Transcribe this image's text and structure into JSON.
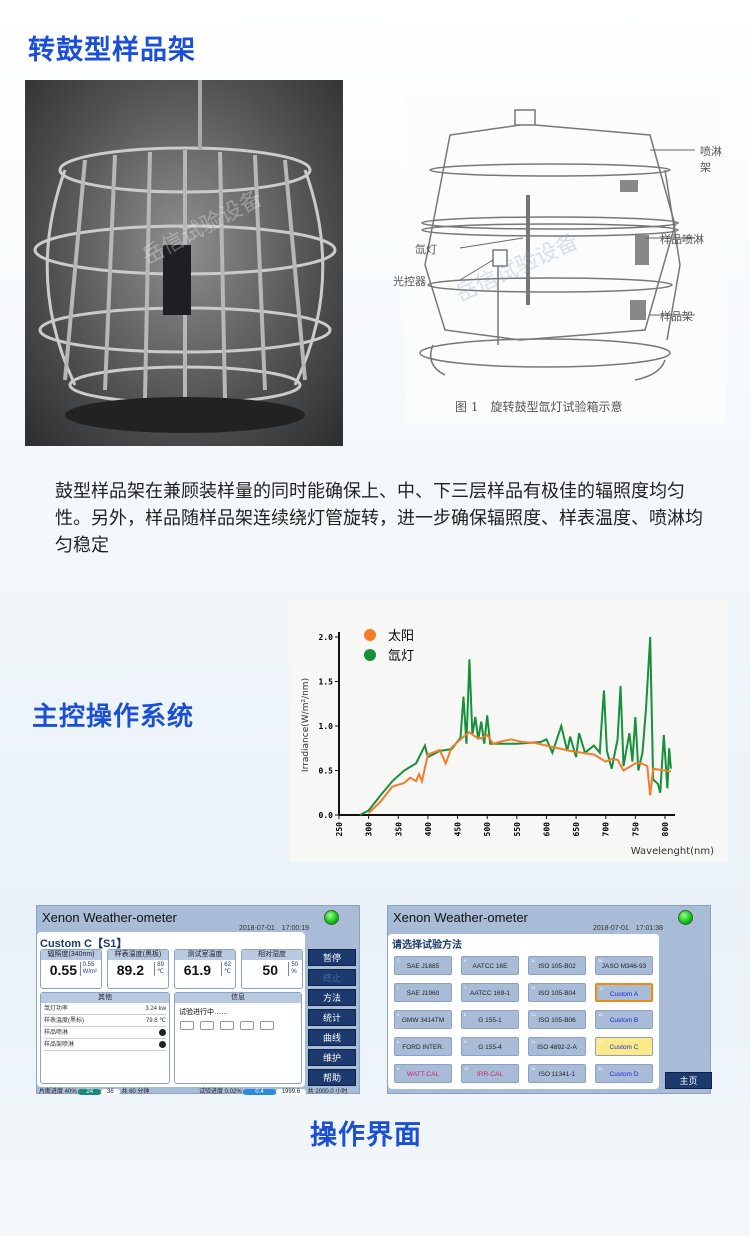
{
  "section1": {
    "title": "转鼓型样品架",
    "watermark": "岳信试验设备"
  },
  "diagram": {
    "labels": {
      "spray_rack": "喷淋架",
      "sample_spray": "样品喷淋",
      "xenon_lamp": "氙灯",
      "light_controller": "光控器",
      "sample_rack": "样品架"
    },
    "caption": "图 1　旋转鼓型氙灯试验箱示意",
    "watermark": "岳信试验设备"
  },
  "description": "鼓型样品架在兼顾装样量的同时能确保上、中、下三层样品有极佳的辐照度均匀性。另外，样品随样品架连续绕灯管旋转，进一步确保辐照度、样表温度、喷淋均匀稳定",
  "section2": {
    "title": "主控操作系统"
  },
  "chart_data": {
    "type": "line",
    "title": "",
    "xlabel": "Wavelenght(nm)",
    "ylabel": "Irradiance(W/m²/nm)",
    "xlim": [
      250,
      810
    ],
    "ylim": [
      0,
      2.0
    ],
    "xticks": [
      "250",
      "300",
      "350",
      "400",
      "450",
      "500",
      "550",
      "600",
      "650",
      "700",
      "750",
      "800"
    ],
    "yticks": [
      "0.0",
      "0.5",
      "1.0",
      "1.5",
      "2.0"
    ],
    "legend": "top-left",
    "grid": false,
    "series": [
      {
        "name": "太阳",
        "color": "#f57c2a",
        "x": [
          300,
          320,
          340,
          360,
          370,
          380,
          385,
          390,
          400,
          420,
          430,
          440,
          460,
          470,
          480,
          490,
          500,
          510,
          520,
          540,
          560,
          580,
          600,
          620,
          640,
          660,
          680,
          700,
          710,
          720,
          730,
          750,
          760,
          770,
          775,
          780,
          800,
          810
        ],
        "y": [
          0.02,
          0.15,
          0.32,
          0.36,
          0.42,
          0.38,
          0.46,
          0.38,
          0.68,
          0.73,
          0.58,
          0.76,
          0.88,
          0.93,
          0.88,
          0.86,
          0.9,
          0.8,
          0.82,
          0.85,
          0.82,
          0.81,
          0.78,
          0.75,
          0.72,
          0.7,
          0.68,
          0.6,
          0.63,
          0.62,
          0.5,
          0.58,
          0.58,
          0.55,
          0.22,
          0.52,
          0.5,
          0.49
        ]
      },
      {
        "name": "氙灯",
        "color": "#17903a",
        "x": [
          285,
          300,
          320,
          340,
          360,
          380,
          395,
          400,
          420,
          440,
          455,
          460,
          465,
          470,
          475,
          480,
          485,
          490,
          495,
          500,
          505,
          550,
          590,
          600,
          610,
          625,
          635,
          640,
          650,
          655,
          665,
          680,
          690,
          693,
          697,
          702,
          710,
          720,
          725,
          730,
          740,
          745,
          750,
          755,
          762,
          768,
          775,
          780,
          788,
          792,
          798,
          804,
          807,
          810
        ],
        "y": [
          0,
          0.05,
          0.22,
          0.38,
          0.5,
          0.58,
          0.78,
          0.65,
          0.72,
          0.74,
          0.87,
          1.33,
          0.8,
          1.75,
          0.9,
          1.1,
          0.85,
          1.05,
          0.8,
          1.12,
          0.8,
          0.8,
          0.82,
          0.85,
          0.7,
          1.0,
          0.72,
          0.88,
          0.65,
          0.92,
          0.7,
          0.78,
          0.7,
          1.02,
          1.4,
          0.72,
          0.52,
          0.85,
          1.45,
          0.55,
          0.92,
          0.6,
          1.1,
          0.5,
          0.7,
          1.2,
          2.0,
          0.4,
          0.35,
          0.25,
          0.9,
          0.3,
          0.75,
          0.52
        ]
      }
    ]
  },
  "ui1": {
    "title": "Xenon Weather-ometer",
    "time": "2018-07-01　17:00:19",
    "program": "Custom C【S1】",
    "gauges": [
      {
        "label": "辐照度(340nm)",
        "value": "0.55",
        "set": "0.55",
        "unit": "W/m²"
      },
      {
        "label": "样表温度(黑板)",
        "value": "89.2",
        "set": "89",
        "unit": "℃"
      },
      {
        "label": "测试室温度",
        "value": "61.9",
        "set": "62",
        "unit": "℃"
      },
      {
        "label": "相对湿度",
        "value": "50",
        "set": "50",
        "unit": "%"
      }
    ],
    "other_title": "其他",
    "other_rows": [
      {
        "label": "氙灯功率",
        "value": "3.24 kw"
      },
      {
        "label": "样表温度(黑标)",
        "value": "79.8 ℃"
      },
      {
        "label": "样品喷淋",
        "value": ""
      },
      {
        "label": "样品架喷淋",
        "value": ""
      }
    ],
    "info_title": "信息",
    "info_text": "试验进行中……",
    "buttons": [
      "暂停",
      "终止",
      "方法",
      "统计",
      "曲线",
      "维护",
      "帮助"
    ],
    "segment_progress": "片断进度 40%",
    "seg_a": "24",
    "seg_b": "36",
    "seg_total": "共 60 分钟",
    "test_progress": "试验进度 0.02%",
    "test_a": "0.4",
    "test_b": "1999.6",
    "test_total": "共 2000.0 小时"
  },
  "ui2": {
    "title": "Xenon Weather-ometer",
    "time": "2018-07-01　17:01:38",
    "heading": "请选择试验方法",
    "home": "主页",
    "methods": [
      {
        "n": "1",
        "label": "SAE J1885"
      },
      {
        "n": "6",
        "label": "AATCC 16E"
      },
      {
        "n": "11",
        "label": "ISO 105-B02"
      },
      {
        "n": "16",
        "label": "JASO M346-93"
      },
      {
        "n": "2",
        "label": "SAE J1960"
      },
      {
        "n": "7",
        "label": "AATCC 169-1"
      },
      {
        "n": "12",
        "label": "ISO 105-B04"
      },
      {
        "n": "17",
        "label": "Custom A"
      },
      {
        "n": "3",
        "label": "GMW 3414TM"
      },
      {
        "n": "8",
        "label": "G 155-1"
      },
      {
        "n": "13",
        "label": "ISO 105-B06"
      },
      {
        "n": "18",
        "label": "Custom B"
      },
      {
        "n": "4",
        "label": "FORD INTER."
      },
      {
        "n": "9",
        "label": "G 155-4"
      },
      {
        "n": "14",
        "label": "ISO 4892-2-A"
      },
      {
        "n": "19",
        "label": "Custom C"
      },
      {
        "n": "5",
        "label": "WATT-CAL"
      },
      {
        "n": "10",
        "label": "IRR-CAL"
      },
      {
        "n": "15",
        "label": "ISO 11341-1"
      },
      {
        "n": "20",
        "label": "Custom D"
      }
    ]
  },
  "section3": {
    "title": "操作界面"
  }
}
